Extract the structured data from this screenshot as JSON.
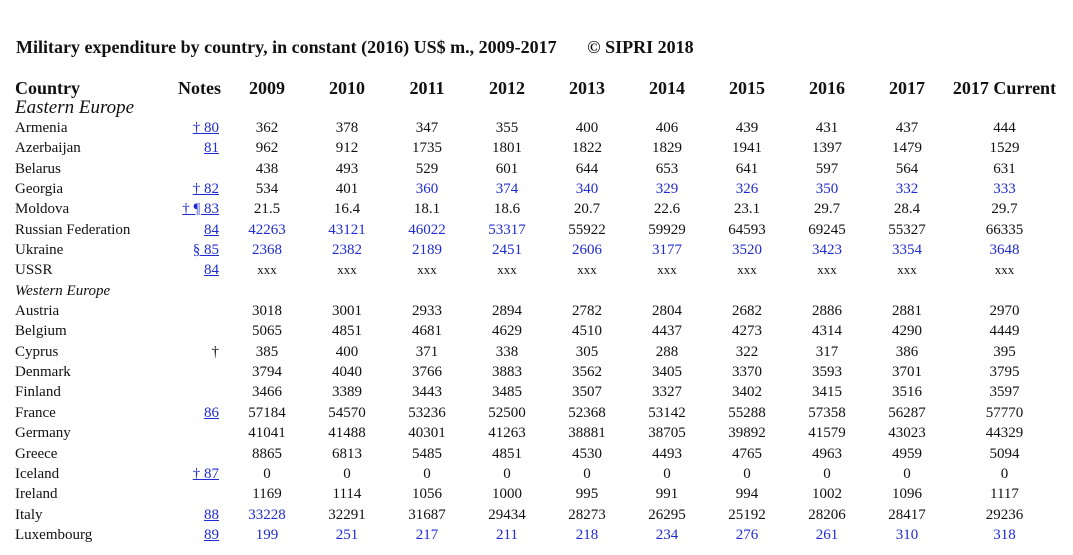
{
  "title": {
    "main": "Military expenditure by country, in constant (2016) US$ m., 2009-2017",
    "copyright": "© SIPRI 2018"
  },
  "columns": [
    "Country",
    "Notes",
    "2009",
    "2010",
    "2011",
    "2012",
    "2013",
    "2014",
    "2015",
    "2016",
    "2017",
    "2017 Current"
  ],
  "colors": {
    "link": "#1f2bd3",
    "text": "#111111"
  },
  "rows": [
    {
      "type": "section",
      "label": "Eastern Europe",
      "cls": "sec-ee"
    },
    {
      "type": "data",
      "country": "Armenia",
      "notes": "† 80",
      "values": [
        "362",
        "378",
        "347",
        "355",
        "400",
        "406",
        "439",
        "431",
        "437",
        "444"
      ]
    },
    {
      "type": "data",
      "country": "Azerbaijan",
      "notes": "81",
      "values": [
        "962",
        "912",
        "1735",
        "1801",
        "1822",
        "1829",
        "1941",
        "1397",
        "1479",
        "1529"
      ]
    },
    {
      "type": "data",
      "country": "Belarus",
      "notes": "",
      "values": [
        "438",
        "493",
        "529",
        "601",
        "644",
        "653",
        "641",
        "597",
        "564",
        "631"
      ]
    },
    {
      "type": "data",
      "country": "Georgia",
      "notes": "† 82",
      "values": [
        "534",
        "401",
        "360",
        "374",
        "340",
        "329",
        "326",
        "350",
        "332",
        "333"
      ],
      "blue": [
        2,
        3,
        4,
        5,
        6,
        7,
        8,
        9
      ]
    },
    {
      "type": "data",
      "country": "Moldova",
      "notes": "† ¶ 83",
      "values": [
        "21.5",
        "16.4",
        "18.1",
        "18.6",
        "20.7",
        "22.6",
        "23.1",
        "29.7",
        "28.4",
        "29.7"
      ]
    },
    {
      "type": "data",
      "country": "Russian Federation",
      "notes": "84",
      "values": [
        "42263",
        "43121",
        "46022",
        "53317",
        "55922",
        "59929",
        "64593",
        "69245",
        "55327",
        "66335"
      ],
      "blue": [
        0,
        1,
        2,
        3
      ]
    },
    {
      "type": "data",
      "country": "Ukraine",
      "notes": "§ 85",
      "values": [
        "2368",
        "2382",
        "2189",
        "2451",
        "2606",
        "3177",
        "3520",
        "3423",
        "3354",
        "3648"
      ],
      "blue": [
        0,
        1,
        2,
        3,
        4,
        5,
        6,
        7,
        8,
        9
      ]
    },
    {
      "type": "data",
      "country": "USSR",
      "notes": "84",
      "values": [
        "xxx",
        "xxx",
        "xxx",
        "xxx",
        "xxx",
        "xxx",
        "xxx",
        "xxx",
        "xxx",
        "xxx"
      ]
    },
    {
      "type": "section",
      "label": "Western Europe",
      "cls": "sec-we"
    },
    {
      "type": "data",
      "country": "Austria",
      "notes": "",
      "values": [
        "3018",
        "3001",
        "2933",
        "2894",
        "2782",
        "2804",
        "2682",
        "2886",
        "2881",
        "2970"
      ]
    },
    {
      "type": "data",
      "country": "Belgium",
      "notes": "",
      "values": [
        "5065",
        "4851",
        "4681",
        "4629",
        "4510",
        "4437",
        "4273",
        "4314",
        "4290",
        "4449"
      ]
    },
    {
      "type": "data",
      "country": "Cyprus",
      "notes": "†",
      "notes_plain": true,
      "values": [
        "385",
        "400",
        "371",
        "338",
        "305",
        "288",
        "322",
        "317",
        "386",
        "395"
      ]
    },
    {
      "type": "data",
      "country": "Denmark",
      "notes": "",
      "values": [
        "3794",
        "4040",
        "3766",
        "3883",
        "3562",
        "3405",
        "3370",
        "3593",
        "3701",
        "3795"
      ]
    },
    {
      "type": "data",
      "country": "Finland",
      "notes": "",
      "values": [
        "3466",
        "3389",
        "3443",
        "3485",
        "3507",
        "3327",
        "3402",
        "3415",
        "3516",
        "3597"
      ]
    },
    {
      "type": "data",
      "country": "France",
      "notes": "86",
      "values": [
        "57184",
        "54570",
        "53236",
        "52500",
        "52368",
        "53142",
        "55288",
        "57358",
        "56287",
        "57770"
      ]
    },
    {
      "type": "data",
      "country": "Germany",
      "notes": "",
      "values": [
        "41041",
        "41488",
        "40301",
        "41263",
        "38881",
        "38705",
        "39892",
        "41579",
        "43023",
        "44329"
      ]
    },
    {
      "type": "data",
      "country": "Greece",
      "notes": "",
      "values": [
        "8865",
        "6813",
        "5485",
        "4851",
        "4530",
        "4493",
        "4765",
        "4963",
        "4959",
        "5094"
      ]
    },
    {
      "type": "data",
      "country": "Iceland",
      "notes": "† 87",
      "values": [
        "0",
        "0",
        "0",
        "0",
        "0",
        "0",
        "0",
        "0",
        "0",
        "0"
      ]
    },
    {
      "type": "data",
      "country": "Ireland",
      "notes": "",
      "values": [
        "1169",
        "1114",
        "1056",
        "1000",
        "995",
        "991",
        "994",
        "1002",
        "1096",
        "1117"
      ]
    },
    {
      "type": "data",
      "country": "Italy",
      "notes": "88",
      "values": [
        "33228",
        "32291",
        "31687",
        "29434",
        "28273",
        "26295",
        "25192",
        "28206",
        "28417",
        "29236"
      ],
      "blue": [
        0
      ]
    },
    {
      "type": "data",
      "country": "Luxembourg",
      "notes": "89",
      "values": [
        "199",
        "251",
        "217",
        "211",
        "218",
        "234",
        "276",
        "261",
        "310",
        "318"
      ],
      "blue": [
        0,
        1,
        2,
        3,
        4,
        5,
        6,
        7,
        8,
        9
      ]
    }
  ]
}
